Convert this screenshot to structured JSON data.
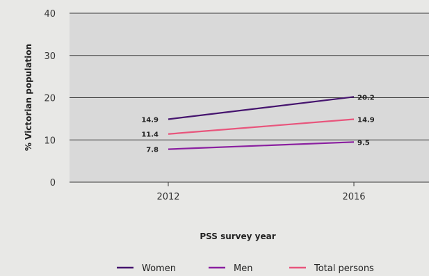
{
  "chart_data": {
    "type": "line",
    "x": [
      "2012",
      "2016"
    ],
    "series": [
      {
        "name": "Women",
        "values": [
          14.9,
          20.2
        ],
        "color": "#45146e"
      },
      {
        "name": "Men",
        "values": [
          7.8,
          9.5
        ],
        "color": "#8a1fa0"
      },
      {
        "name": "Total persons",
        "values": [
          11.4,
          14.9
        ],
        "color": "#e8557c"
      }
    ],
    "xlabel": "PSS survey year",
    "ylabel": "% Victorian population",
    "ylim": [
      0,
      40
    ],
    "yticks": [
      0,
      10,
      20,
      30,
      40
    ],
    "grid": true,
    "plot_background": "#d9d9d9",
    "legend_position": "bottom"
  }
}
